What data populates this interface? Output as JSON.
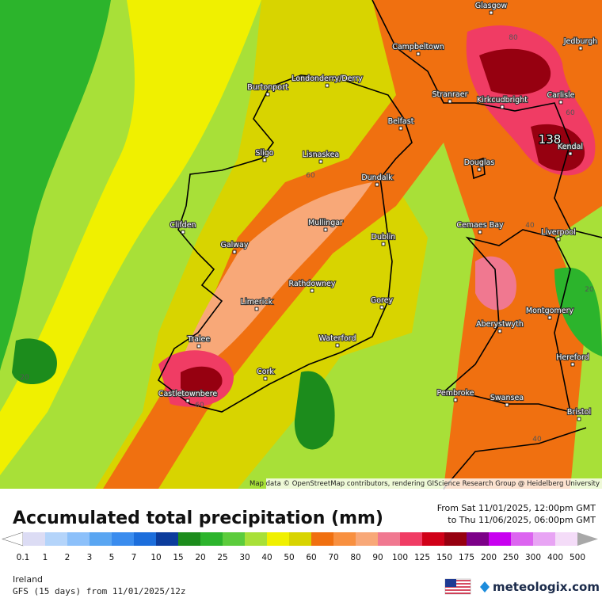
{
  "map": {
    "place_labels": [
      "Glasgow",
      "Campbeltown",
      "Jedburgh",
      "Burtonport",
      "Londonderry/Derry",
      "Stranraer",
      "Kirkcudbright",
      "Carlisle",
      "Belfast",
      "Kendal",
      "Sligo",
      "Lisnaskea",
      "Douglas",
      "Dundalk",
      "Clifden",
      "Mullingar",
      "Liverpool",
      "Cemaes Bay",
      "Dublin",
      "Galway",
      "Rathdowney",
      "Limerick",
      "Gorey",
      "Montgomery",
      "Aberystwyth",
      "Tralee",
      "Waterford",
      "Hereford",
      "Cork",
      "Castletownbere",
      "Pembroke",
      "Swansea",
      "Bristol"
    ],
    "contour_labels": [
      "80",
      "60",
      "40",
      "20",
      "60",
      "20",
      "40",
      "60"
    ],
    "max_label": "138",
    "attribution": "Map data © OpenStreetMap contributors, rendering GIScience Research Group @ Heidelberg University"
  },
  "legend": {
    "title": "Accumulated total precipitation (mm)",
    "period_from": "From Sat 11/01/2025, 12:00pm GMT",
    "period_to": "to Thu 11/06/2025, 06:00pm GMT",
    "scale_labels": [
      "0.1",
      "1",
      "2",
      "3",
      "5",
      "7",
      "10",
      "15",
      "20",
      "25",
      "30",
      "40",
      "50",
      "60",
      "70",
      "80",
      "90",
      "100",
      "125",
      "150",
      "175",
      "200",
      "250",
      "300",
      "400",
      "500"
    ],
    "colors": [
      "#dcdcf4",
      "#b4d4fa",
      "#8cc0fa",
      "#5aa6f2",
      "#3a8cee",
      "#1c6edc",
      "#0c3c9c",
      "#1c8c1c",
      "#2cb42c",
      "#5ccc3c",
      "#a8e038",
      "#f0f000",
      "#d8d400",
      "#f07010",
      "#f89040",
      "#f8a878",
      "#f07890",
      "#f03c64",
      "#d00018",
      "#960010",
      "#7c0088",
      "#c800f0",
      "#dc64f0",
      "#e8a4f4",
      "#f4dcf8"
    ],
    "low_color": "#ffffff",
    "high_color": "#a8a8a8"
  },
  "footer": {
    "region": "Ireland",
    "model": "GFS (15 days) from 11/01/2025/12z",
    "brand": "meteologix.com"
  }
}
